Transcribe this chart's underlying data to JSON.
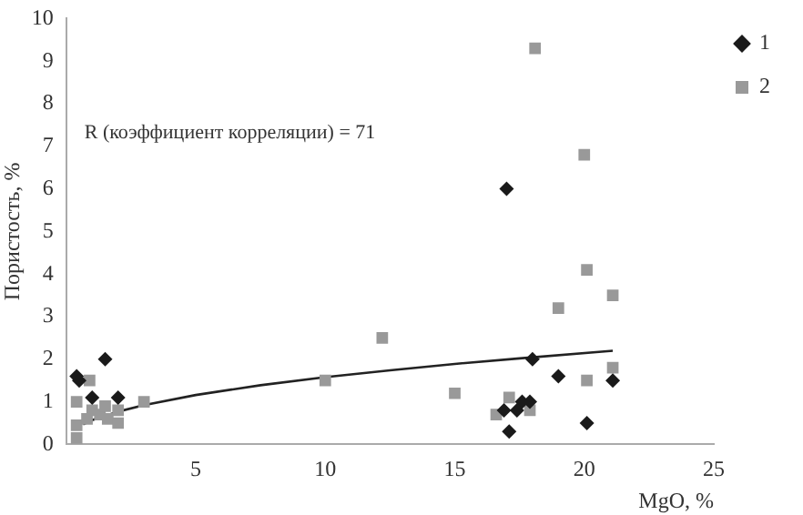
{
  "chart_data": {
    "type": "scatter",
    "ylabel": "Пористость, %",
    "xlabel": "MgO, %",
    "annotations": [
      "R (коэффициент корреляции) = 71"
    ],
    "xlim": [
      0,
      25
    ],
    "xticks": [
      5,
      10,
      15,
      20,
      25
    ],
    "ylim": [
      0,
      10
    ],
    "yticks": [
      0,
      1,
      2,
      3,
      4,
      5,
      6,
      7,
      8,
      9,
      10
    ],
    "grid": false,
    "legend": "top right",
    "series": [
      {
        "name": "1",
        "color": "#1a1a1a",
        "marker": "diamond",
        "x": [
          0.4,
          0.5,
          1.5,
          1.0,
          2.0,
          18.0,
          19.0,
          17.9,
          17.6,
          17.4,
          16.9,
          17.1,
          20.1,
          21.1,
          17.0
        ],
        "values": [
          1.6,
          1.5,
          2.0,
          1.1,
          1.1,
          2.0,
          1.6,
          1.0,
          1.0,
          0.8,
          0.8,
          0.3,
          0.5,
          1.5,
          6.0
        ]
      },
      {
        "name": "2",
        "color": "#999999",
        "marker": "square",
        "x": [
          18.1,
          20.0,
          20.1,
          21.1,
          19.0,
          12.2,
          21.1,
          20.1,
          15.0,
          17.1,
          16.6,
          17.9,
          10.0,
          3.0,
          0.4,
          0.9,
          0.4,
          0.4,
          1.0,
          1.3,
          1.6,
          2.0,
          2.0,
          1.5,
          0.8
        ],
        "values": [
          9.3,
          6.8,
          4.1,
          3.5,
          3.2,
          2.5,
          1.8,
          1.5,
          1.2,
          1.1,
          0.7,
          0.8,
          1.5,
          1.0,
          1.0,
          1.5,
          0.15,
          0.45,
          0.8,
          0.7,
          0.6,
          0.5,
          0.8,
          0.9,
          0.6
        ]
      },
      {
        "type": "line",
        "color": "#222222",
        "marker": "none",
        "x": [
          0.65,
          1,
          2,
          3,
          5,
          7.5,
          10,
          12.5,
          15,
          17.5,
          21.1
        ],
        "values": [
          0.47,
          0.57,
          0.77,
          0.92,
          1.16,
          1.39,
          1.58,
          1.74,
          1.89,
          2.02,
          2.2
        ]
      }
    ]
  }
}
